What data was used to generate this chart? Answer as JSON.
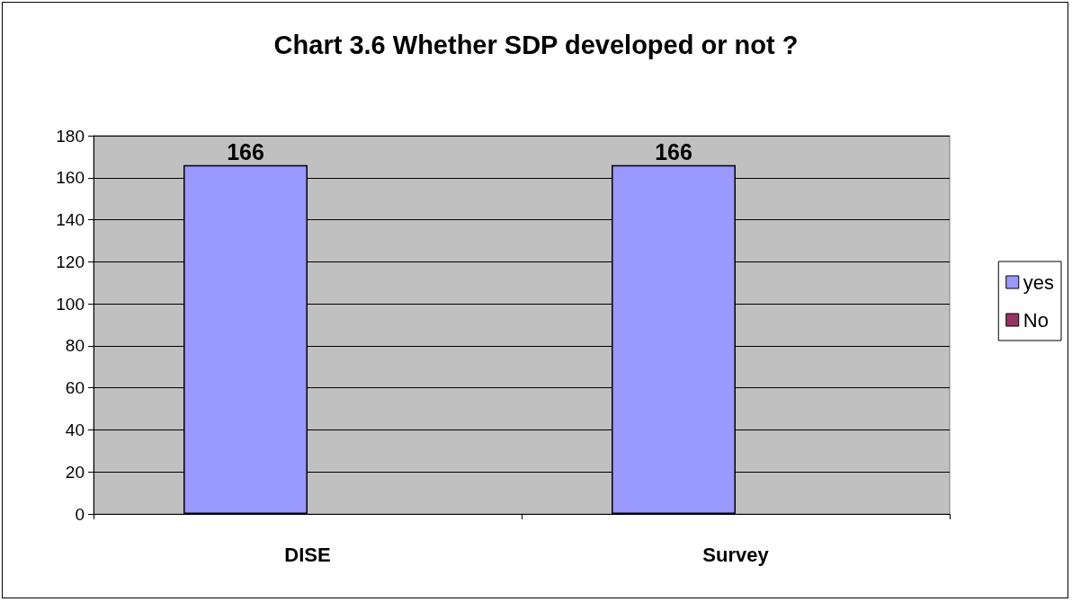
{
  "chart_data": {
    "type": "bar",
    "title": "Chart 3.6 Whether SDP developed or not ?",
    "categories": [
      "DISE",
      "Survey"
    ],
    "series": [
      {
        "name": "yes",
        "color": "#9999ff",
        "values": [
          166,
          166
        ]
      },
      {
        "name": "No",
        "color": "#993366",
        "values": [
          null,
          null
        ]
      }
    ],
    "ylim": [
      0,
      180
    ],
    "yticks": [
      0,
      20,
      40,
      60,
      80,
      100,
      120,
      140,
      160,
      180
    ],
    "grid": "y",
    "legend": "right",
    "data_labels": true
  }
}
